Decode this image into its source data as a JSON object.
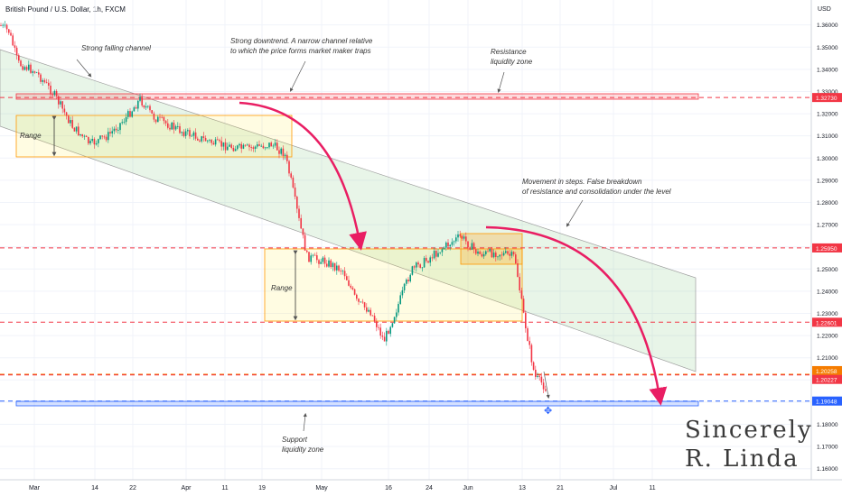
{
  "header": {
    "title": "British Pound / U.S. Dollar, 1h, FXCM"
  },
  "signature": {
    "line1": "Sincerely",
    "line2": "R. Linda"
  },
  "chart_data": {
    "type": "candlestick",
    "currency_label": "USD",
    "ylim": [
      1.155,
      1.368
    ],
    "y_ticks": [
      "1.36000",
      "1.35000",
      "1.34000",
      "1.33000",
      "1.32000",
      "1.31000",
      "1.30000",
      "1.29000",
      "1.28000",
      "1.27000",
      "1.26000",
      "1.25000",
      "1.24000",
      "1.23000",
      "1.22000",
      "1.21000",
      "1.20000",
      "1.19000",
      "1.18000",
      "1.17000",
      "1.16000"
    ],
    "x_ticks": [
      "Mar",
      "14",
      "22",
      "Apr",
      "11",
      "19",
      "May",
      "16",
      "24",
      "Jun",
      "13",
      "21",
      "Jul",
      "11"
    ],
    "price_levels": [
      {
        "value": "1.32730",
        "color": "#f23645"
      },
      {
        "value": "1.25950",
        "color": "#f23645"
      },
      {
        "value": "1.22601",
        "color": "#f23645"
      },
      {
        "value": "1.20258",
        "color": "#f57c00"
      },
      {
        "value": "1.20227",
        "color": "#f23645"
      },
      {
        "value": "1.19048",
        "color": "#2962ff"
      }
    ],
    "annotations": {
      "falling_channel": "Strong falling channel",
      "downtrend_1": "Strong downtrend. A narrow channel relative",
      "downtrend_2": "to which the price forms market maker traps",
      "resistance_1": "Resistance",
      "resistance_2": "liquidity zone",
      "steps_1": "Movement in steps. False breakdown",
      "steps_2": "of resistance and consolidation under the level",
      "range_1": "Range",
      "range_2": "Range",
      "support_1": "Support",
      "support_2": "liquidity zone"
    },
    "colors": {
      "up": "#089981",
      "down": "#f23645",
      "arrow": "#e91e63"
    }
  }
}
